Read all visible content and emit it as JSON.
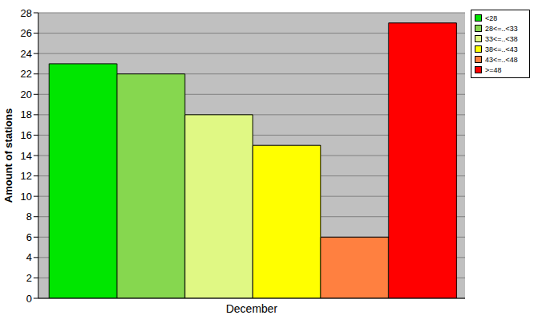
{
  "chart_data": {
    "type": "bar",
    "categories": [
      "December"
    ],
    "series": [
      {
        "name": "<28",
        "color": "#00e600",
        "values": [
          23
        ]
      },
      {
        "name": "28<=..<33",
        "color": "#86d74f",
        "values": [
          22
        ]
      },
      {
        "name": "33<=..<38",
        "color": "#e0f884",
        "values": [
          18
        ]
      },
      {
        "name": "38<=..<43",
        "color": "#ffff00",
        "values": [
          15
        ]
      },
      {
        "name": "43<=..<48",
        "color": "#ff8040",
        "values": [
          6
        ]
      },
      {
        "name": ">=48",
        "color": "#ff0000",
        "values": [
          27
        ]
      }
    ],
    "y_label": "Amount of stations",
    "ylim": [
      0,
      28
    ],
    "yticks": [
      0,
      2,
      4,
      6,
      8,
      10,
      12,
      14,
      16,
      18,
      20,
      22,
      24,
      26,
      28
    ],
    "grid": true,
    "legend": "upper right"
  }
}
